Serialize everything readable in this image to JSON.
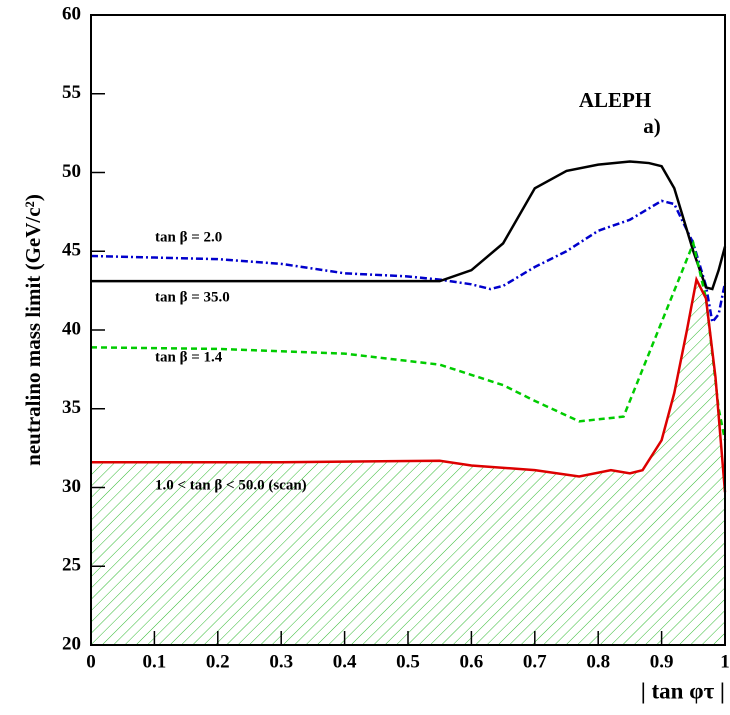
{
  "chart_data": {
    "type": "line",
    "ylabel": "neutralino mass limit (GeV/c²)",
    "xlabel": "| tan φτ |",
    "annotations": [
      "ALEPH",
      "a)"
    ],
    "xlim": [
      0,
      1
    ],
    "xticks": [
      0,
      0.1,
      0.2,
      0.3,
      0.4,
      0.5,
      0.6,
      0.7,
      0.8,
      0.9,
      1
    ],
    "ylim": [
      20,
      60
    ],
    "yticks": [
      20,
      25,
      30,
      35,
      40,
      45,
      50,
      55,
      60
    ],
    "series": [
      {
        "name": "tan β = 2.0",
        "color": "#0000cc",
        "style": "dashdot",
        "x": [
          0,
          0.1,
          0.2,
          0.3,
          0.4,
          0.5,
          0.55,
          0.6,
          0.63,
          0.65,
          0.7,
          0.75,
          0.8,
          0.85,
          0.9,
          0.92,
          0.95,
          0.97,
          0.98,
          0.99,
          1
        ],
        "values": [
          44.7,
          44.6,
          44.5,
          44.2,
          43.6,
          43.4,
          43.2,
          42.9,
          42.6,
          42.8,
          44.0,
          45.0,
          46.3,
          47.0,
          48.2,
          48.0,
          45.5,
          42.8,
          40.5,
          41.0,
          43.0
        ]
      },
      {
        "name": "tan β = 35.0",
        "color": "#000000",
        "style": "solid",
        "x": [
          0,
          0.3,
          0.55,
          0.6,
          0.65,
          0.7,
          0.75,
          0.8,
          0.85,
          0.88,
          0.9,
          0.92,
          0.95,
          0.97,
          0.98,
          0.99,
          1
        ],
        "values": [
          43.1,
          43.1,
          43.1,
          43.8,
          45.5,
          49.0,
          50.1,
          50.5,
          50.7,
          50.6,
          50.4,
          49.0,
          45.0,
          42.7,
          42.6,
          43.8,
          45.3
        ]
      },
      {
        "name": "tan β = 1.4",
        "color": "#00cc00",
        "style": "dashed",
        "x": [
          0,
          0.2,
          0.4,
          0.55,
          0.65,
          0.7,
          0.77,
          0.84,
          0.88,
          0.92,
          0.95,
          0.97,
          0.99,
          1
        ],
        "values": [
          38.9,
          38.8,
          38.5,
          37.8,
          36.5,
          35.5,
          34.2,
          34.5,
          38.5,
          42.5,
          45.5,
          42.0,
          35.0,
          33.0
        ]
      },
      {
        "name": "1.0  <  tan β  < 50.0 (scan)",
        "color": "#dd0000",
        "style": "solid",
        "hatch_color": "#33bb33",
        "x": [
          0,
          0.3,
          0.55,
          0.6,
          0.7,
          0.77,
          0.82,
          0.85,
          0.87,
          0.9,
          0.92,
          0.94,
          0.955,
          0.97,
          0.985,
          1
        ],
        "values": [
          31.6,
          31.6,
          31.7,
          31.4,
          31.1,
          30.7,
          31.1,
          30.9,
          31.1,
          33.0,
          36.0,
          40.0,
          43.2,
          42.0,
          37.0,
          29.7
        ]
      }
    ]
  }
}
